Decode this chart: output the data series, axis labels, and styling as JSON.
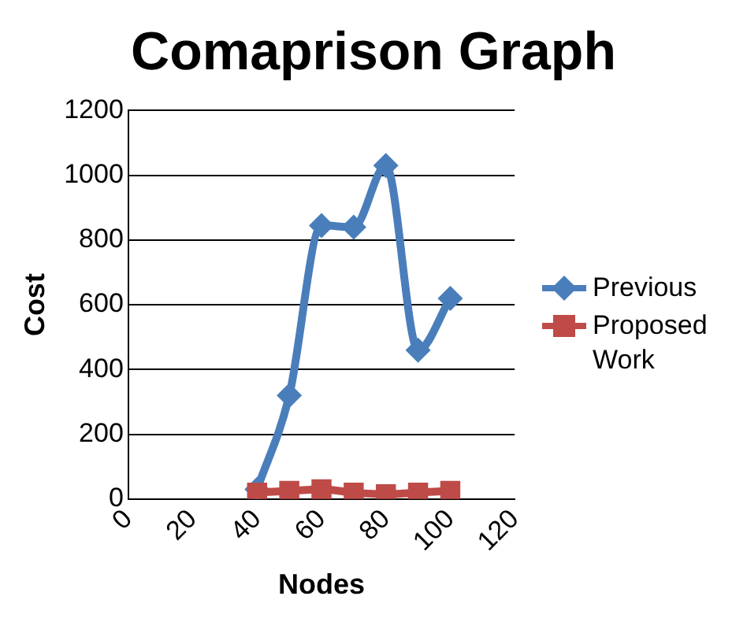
{
  "chart_data": {
    "type": "line",
    "title": "Comaprison Graph",
    "xlabel": "Nodes",
    "ylabel": "Cost",
    "x": [
      40,
      50,
      60,
      70,
      80,
      90,
      100
    ],
    "series": [
      {
        "name": "Previous",
        "color": "#4a7ebb",
        "marker": "diamond",
        "values": [
          30,
          320,
          845,
          840,
          1030,
          460,
          620
        ]
      },
      {
        "name": "Proposed Work",
        "color": "#be4b48",
        "marker": "square",
        "values": [
          20,
          25,
          30,
          20,
          15,
          20,
          25
        ]
      }
    ],
    "xlim": [
      0,
      120
    ],
    "xticks": [
      0,
      20,
      40,
      60,
      80,
      100,
      120
    ],
    "ylim": [
      0,
      1200
    ],
    "yticks": [
      0,
      200,
      400,
      600,
      800,
      1000,
      1200
    ],
    "grid": "y",
    "legend": "right"
  }
}
